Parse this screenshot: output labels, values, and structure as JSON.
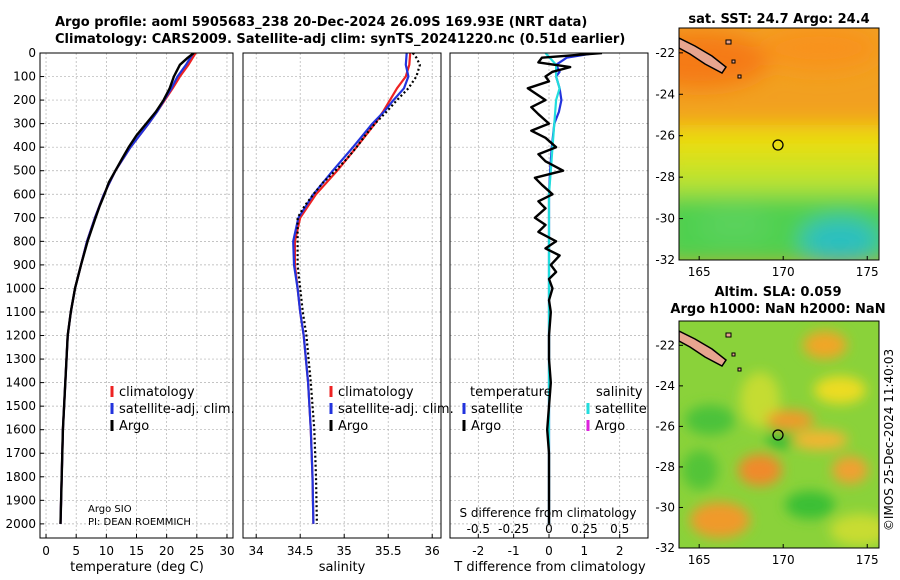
{
  "title_line1": "Argo profile: aoml 5905683_238 20-Dec-2024 26.09S 169.93E (NRT data)",
  "title_line2": "Climatology: CARS2009. Satellite-adj clim: synTS_20241220.nc (0.51d earlier)",
  "colors": {
    "climatology": "#ee2222",
    "satellite_adj": "#2233dd",
    "argo": "#000000",
    "satellite_salinity": "#22dddd",
    "argo_salinity": "#dd22dd",
    "grid": "#b0b0b0"
  },
  "chart_data": [
    {
      "type": "line",
      "id": "temperature",
      "xlabel": "temperature (deg C)",
      "xlim": [
        -1,
        31
      ],
      "ylim": [
        2060,
        0
      ],
      "xticks": [
        "0",
        "5",
        "10",
        "15",
        "20",
        "25",
        "30"
      ],
      "xtick_values": [
        0,
        5,
        10,
        15,
        20,
        25,
        30
      ],
      "yticks": [
        "0",
        "100",
        "200",
        "300",
        "400",
        "500",
        "600",
        "700",
        "800",
        "900",
        "1000",
        "1100",
        "1200",
        "1300",
        "1400",
        "1500",
        "1600",
        "1700",
        "1800",
        "1900",
        "2000"
      ],
      "legend": [
        "climatology",
        "satellite-adj. clim.",
        "Argo"
      ],
      "annotation": [
        "Argo SIO",
        "PI: DEAN ROEMMICH"
      ],
      "series": [
        {
          "name": "climatology",
          "depth": [
            0,
            50,
            100,
            150,
            200,
            250,
            300,
            400,
            500,
            600,
            700,
            800,
            900,
            1000,
            1100,
            1200,
            1400,
            1600,
            1800,
            2000
          ],
          "values": [
            24.8,
            23.6,
            22.2,
            21.0,
            19.7,
            18.4,
            17.0,
            14.0,
            11.5,
            9.6,
            8.1,
            6.8,
            5.8,
            4.8,
            4.1,
            3.6,
            3.2,
            2.8,
            2.6,
            2.4
          ]
        },
        {
          "name": "satellite-adj. clim.",
          "depth": [
            0,
            50,
            100,
            150,
            200,
            250,
            300,
            400,
            500,
            600,
            700,
            800,
            900,
            1000,
            1100,
            1200,
            1400,
            1600,
            1800,
            2000
          ],
          "values": [
            24.4,
            23.2,
            21.8,
            20.8,
            19.6,
            18.4,
            17.0,
            14.0,
            11.5,
            9.6,
            8.1,
            6.8,
            5.8,
            4.8,
            4.1,
            3.6,
            3.2,
            2.8,
            2.6,
            2.4
          ]
        },
        {
          "name": "Argo",
          "depth": [
            0,
            20,
            50,
            80,
            100,
            150,
            200,
            250,
            300,
            350,
            400,
            450,
            500,
            550,
            600,
            650,
            700,
            800,
            900,
            1000,
            1100,
            1200,
            1400,
            1600,
            1800,
            2000
          ],
          "values": [
            24.5,
            23.5,
            22.2,
            21.6,
            21.2,
            20.5,
            19.5,
            18.2,
            16.6,
            15.0,
            13.7,
            12.6,
            11.5,
            10.4,
            9.7,
            8.9,
            8.2,
            6.9,
            5.8,
            4.8,
            4.1,
            3.6,
            3.2,
            2.8,
            2.6,
            2.4
          ]
        }
      ]
    },
    {
      "type": "line",
      "id": "salinity",
      "xlabel": "salinity",
      "xlim": [
        33.85,
        36.1
      ],
      "ylim": [
        2060,
        0
      ],
      "xticks": [
        "34",
        "34.5",
        "35",
        "35.5",
        "36"
      ],
      "xtick_values": [
        34,
        34.5,
        35,
        35.5,
        36
      ],
      "legend": [
        "climatology",
        "satellite-adj. clim.",
        "Argo"
      ],
      "series": [
        {
          "name": "climatology",
          "depth": [
            0,
            50,
            100,
            150,
            200,
            250,
            300,
            400,
            500,
            600,
            700,
            800,
            900,
            1000,
            1100,
            1200,
            1400,
            1600,
            1800,
            2000
          ],
          "values": [
            35.75,
            35.74,
            35.7,
            35.6,
            35.52,
            35.44,
            35.35,
            35.14,
            34.92,
            34.68,
            34.5,
            34.44,
            34.44,
            34.47,
            34.5,
            34.54,
            34.59,
            34.62,
            34.64,
            34.65
          ]
        },
        {
          "name": "satellite-adj. clim.",
          "depth": [
            0,
            50,
            100,
            150,
            200,
            250,
            300,
            400,
            500,
            600,
            700,
            800,
            900,
            1000,
            1100,
            1200,
            1400,
            1600,
            1800,
            2000
          ],
          "values": [
            35.71,
            35.7,
            35.73,
            35.68,
            35.56,
            35.45,
            35.32,
            35.1,
            34.87,
            34.65,
            34.48,
            34.42,
            34.43,
            34.47,
            34.5,
            34.54,
            34.59,
            34.62,
            34.64,
            34.65
          ]
        },
        {
          "name": "Argo",
          "depth": [
            0,
            20,
            50,
            100,
            150,
            200,
            250,
            300,
            350,
            400,
            450,
            500,
            550,
            600,
            650,
            700,
            800,
            900,
            1000,
            1100,
            1200,
            1400,
            1600,
            1800,
            2000
          ],
          "values": [
            35.78,
            35.82,
            35.86,
            35.82,
            35.73,
            35.6,
            35.48,
            35.35,
            35.24,
            35.14,
            35.03,
            34.9,
            34.76,
            34.65,
            34.55,
            34.47,
            34.47,
            34.47,
            34.5,
            34.53,
            34.57,
            34.62,
            34.66,
            34.68,
            34.69
          ]
        }
      ]
    },
    {
      "type": "line",
      "id": "difference",
      "xlabel": "T difference from climatology",
      "xlabel_top": "S difference from climatology",
      "xlim": [
        -2.8,
        2.8
      ],
      "ylim": [
        2060,
        0
      ],
      "xticks": [
        "-2",
        "-1",
        "0",
        "1",
        "2"
      ],
      "xtick_values": [
        -2,
        -1,
        0,
        1,
        2
      ],
      "xticks_top": [
        "-0.5",
        "-0.25",
        "0",
        "0.25",
        "0.5"
      ],
      "xticks_top_values": [
        -2,
        -1,
        0,
        1,
        2
      ],
      "legend_temperature": [
        "temperature",
        "satellite",
        "Argo"
      ],
      "legend_salinity": [
        "salinity",
        "satellite",
        "Argo"
      ],
      "series": [
        {
          "name": "satellite temperature",
          "depth": [
            0,
            20,
            50,
            80,
            100,
            150,
            200,
            250,
            300,
            400,
            500,
            600,
            700,
            800,
            900,
            1000,
            1200,
            1400,
            1600,
            1800,
            2000
          ],
          "values": [
            1.3,
            0.5,
            0.2,
            0.3,
            0.2,
            0.3,
            0.35,
            0.28,
            0.15,
            0.08,
            0.03,
            0.0,
            0.0,
            0.0,
            0.0,
            0.0,
            0.0,
            0.0,
            0.0,
            0.0,
            0.0
          ]
        },
        {
          "name": "satellite salinity",
          "depth": [
            0,
            50,
            100,
            150,
            200,
            300,
            400,
            500,
            600,
            700,
            800,
            900,
            1000,
            1200,
            1400,
            1600,
            1800,
            2000
          ],
          "values": [
            -0.1,
            0.2,
            0.2,
            0.3,
            0.2,
            0.15,
            0.1,
            0.05,
            0.0,
            0.0,
            0.0,
            0.0,
            0.0,
            0.0,
            0.0,
            0.0,
            0.0,
            0.0
          ]
        },
        {
          "name": "Argo temperature",
          "depth": [
            0,
            20,
            40,
            60,
            80,
            100,
            120,
            150,
            180,
            200,
            230,
            260,
            300,
            330,
            360,
            400,
            430,
            460,
            500,
            530,
            560,
            600,
            630,
            660,
            700,
            730,
            760,
            800,
            830,
            860,
            900,
            930,
            960,
            1000,
            1050,
            1100,
            1200,
            1300,
            1400,
            1500,
            1600,
            1700,
            1800,
            1900,
            2000
          ],
          "values": [
            1.5,
            -0.2,
            -0.3,
            0.6,
            0.1,
            -0.1,
            0.0,
            -0.6,
            -0.3,
            -0.1,
            -0.5,
            -0.3,
            0.0,
            -0.5,
            -0.1,
            0.2,
            -0.3,
            -0.1,
            0.4,
            -0.4,
            -0.2,
            0.1,
            -0.3,
            -0.1,
            -0.4,
            -0.1,
            -0.3,
            0.2,
            -0.1,
            0.3,
            0.05,
            0.2,
            0.0,
            0.1,
            0.0,
            0.05,
            0.0,
            0.0,
            0.05,
            0.0,
            -0.05,
            0.0,
            0.0,
            0.0,
            0.0
          ]
        }
      ]
    }
  ],
  "sst_map": {
    "title": "sat. SST: 24.7 Argo: 24.4",
    "xticks": [
      "165",
      "170",
      "175"
    ],
    "yticks": [
      "-22",
      "-24",
      "-26",
      "-28",
      "-30",
      "-32"
    ]
  },
  "sla_map": {
    "title_line1": "Altim. SLA: 0.059",
    "title_line2": "Argo h1000: NaN h2000: NaN",
    "xticks": [
      "165",
      "170",
      "175"
    ],
    "yticks": [
      "-22",
      "-24",
      "-26",
      "-28",
      "-30",
      "-32"
    ]
  },
  "credit": "©IMOS 25-Dec-2024 11:40:03"
}
